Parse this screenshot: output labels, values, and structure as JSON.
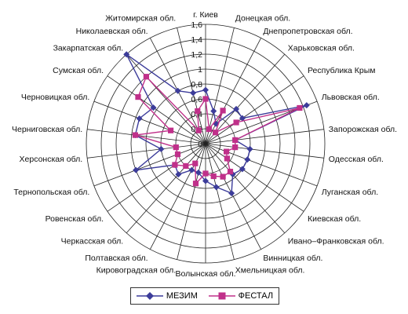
{
  "chart_data": {
    "type": "radar",
    "rmax": 1.6,
    "ticks": [
      "0",
      "0,2",
      "0,4",
      "0,6",
      "0,8",
      "1",
      "1,2",
      "1,4",
      "1,6"
    ],
    "categories": [
      "г. Киев",
      "Донецкая обл.",
      "Днепропетровская обл.",
      "Харьковская обл.",
      "Республика Крым",
      "Львовская обл.",
      "Запорожская обл.",
      "Одесская обл.",
      "Луганская обл.",
      "Киевская обл.",
      "Ивано–Франковская обл.",
      "Винницкая обл.",
      "Хмельницкая обл.",
      "Волынская обл.",
      "Кировоградская обл.",
      "Полтавская обл.",
      "Черкасская обл.",
      "Ровенская обл.",
      "Тернопольская обл.",
      "Херсонская обл.",
      "Черниговская обл.",
      "Черновицкая обл.",
      "Сумская обл.",
      "Закарпатская обл.",
      "Николаевская обл.",
      "Житомирская обл."
    ],
    "series": [
      {
        "name": "МЕЗИМ",
        "color": "#3c3c9a",
        "marker": "diamond",
        "values": [
          0.72,
          0.45,
          0.3,
          0.62,
          0.6,
          1.45,
          0.4,
          0.6,
          0.6,
          0.6,
          0.55,
          0.75,
          0.6,
          0.5,
          0.4,
          0.4,
          0.55,
          0.5,
          1.0,
          0.6,
          0.95,
          0.95,
          0.85,
          1.6,
          0.8,
          0.7
        ]
      },
      {
        "name": "ФЕСТАЛ",
        "color": "#c0308a",
        "marker": "square",
        "values": [
          0.6,
          0.2,
          0.5,
          0.2,
          0.5,
          1.35,
          0.4,
          0.4,
          0.3,
          0.35,
          0.5,
          0.5,
          0.45,
          0.4,
          0.55,
          0.3,
          0.4,
          0.5,
          0.4,
          0.4,
          0.95,
          0.5,
          1.1,
          1.2,
          0.2,
          0.45
        ]
      }
    ],
    "legend_position": "bottom",
    "grid": true
  }
}
